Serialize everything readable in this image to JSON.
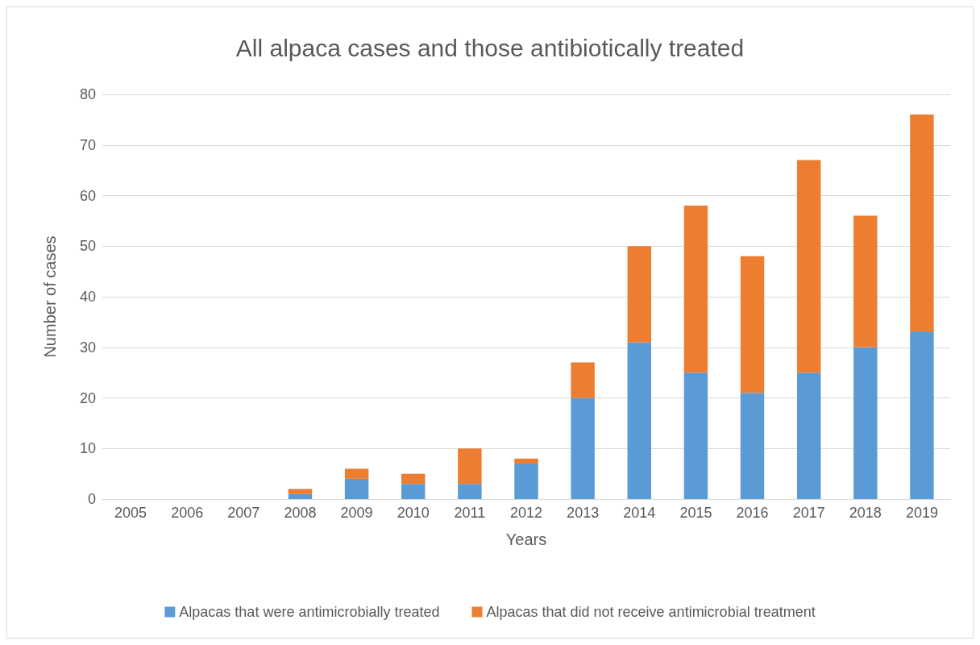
{
  "chart_data": {
    "type": "bar",
    "title": "All alpaca cases and those antibiotically treated",
    "xlabel": "Years",
    "ylabel": "Number of cases",
    "categories": [
      "2005",
      "2006",
      "2007",
      "2008",
      "2009",
      "2010",
      "2011",
      "2012",
      "2013",
      "2014",
      "2015",
      "2016",
      "2017",
      "2018",
      "2019"
    ],
    "series": [
      {
        "name": "Alpacas that were antimicrobially treated",
        "color": "#5b9bd5",
        "values": [
          0,
          0,
          0,
          1,
          4,
          3,
          3,
          7,
          20,
          31,
          25,
          21,
          25,
          30,
          33
        ]
      },
      {
        "name": "Alpacas that did not receive antimicrobial treatment",
        "color": "#ed7d31",
        "values": [
          0,
          0,
          0,
          1,
          2,
          2,
          7,
          1,
          7,
          19,
          33,
          27,
          42,
          26,
          43
        ]
      }
    ],
    "stacked": true,
    "ylim": [
      0,
      80
    ],
    "yticks": [
      0,
      10,
      20,
      30,
      40,
      50,
      60,
      70,
      80
    ],
    "grid": "y",
    "legend": "bottom"
  }
}
